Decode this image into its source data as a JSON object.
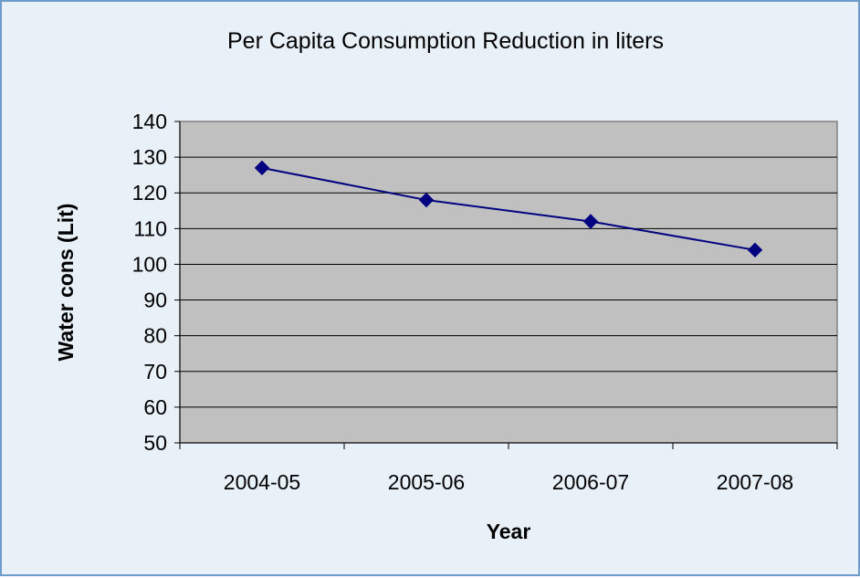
{
  "chart_data": {
    "type": "line",
    "title": "Per Capita Consumption Reduction in liters",
    "xlabel": "Year",
    "ylabel": "Water cons (Lit)",
    "categories": [
      "2004-05",
      "2005-06",
      "2006-07",
      "2007-08"
    ],
    "series": [
      {
        "values": [
          127,
          118,
          112,
          104
        ]
      }
    ],
    "ylim": [
      50,
      140
    ],
    "yticks": [
      50,
      60,
      70,
      80,
      90,
      100,
      110,
      120,
      130,
      140
    ],
    "grid": true,
    "legend": "none",
    "colors": {
      "frame_background": "#e8f0f8",
      "frame_border": "#6f9bcc",
      "plot_background": "#c0c0c0",
      "series": "#000080"
    }
  }
}
